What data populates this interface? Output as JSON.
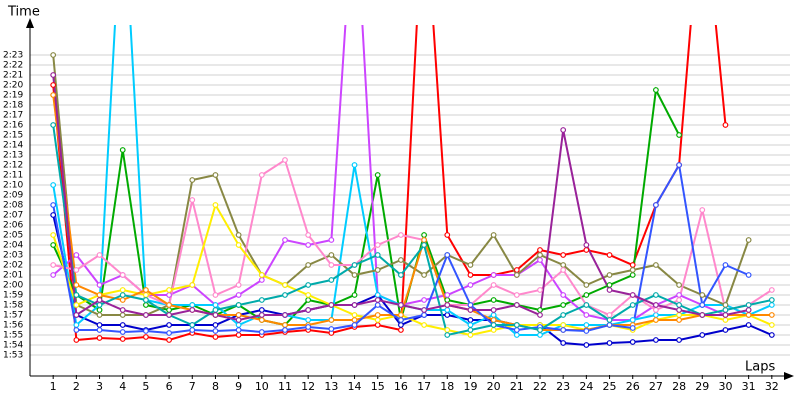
{
  "chart_data": {
    "type": "line",
    "y_label": "Time",
    "x_label": "Laps",
    "x": [
      1,
      2,
      3,
      4,
      5,
      6,
      7,
      8,
      9,
      10,
      11,
      12,
      13,
      14,
      15,
      16,
      17,
      18,
      19,
      20,
      21,
      22,
      23,
      24,
      25,
      26,
      27,
      28,
      29,
      30,
      31,
      32
    ],
    "xlim": [
      0,
      33
    ],
    "xticks": [
      1,
      2,
      3,
      4,
      5,
      6,
      7,
      8,
      9,
      10,
      11,
      12,
      13,
      14,
      15,
      16,
      17,
      18,
      19,
      20,
      21,
      22,
      23,
      24,
      25,
      26,
      27,
      28,
      29,
      30,
      31,
      32
    ],
    "ylim": [
      111,
      146
    ],
    "yticks": [
      {
        "value": 113,
        "label": "1:53"
      },
      {
        "value": 114,
        "label": "1:54"
      },
      {
        "value": 115,
        "label": "1:55"
      },
      {
        "value": 116,
        "label": "1:56"
      },
      {
        "value": 117,
        "label": "1:57"
      },
      {
        "value": 118,
        "label": "1:58"
      },
      {
        "value": 119,
        "label": "1:59"
      },
      {
        "value": 120,
        "label": "2:00"
      },
      {
        "value": 121,
        "label": "2:01"
      },
      {
        "value": 122,
        "label": "2:02"
      },
      {
        "value": 123,
        "label": "2:03"
      },
      {
        "value": 124,
        "label": "2:04"
      },
      {
        "value": 125,
        "label": "2:05"
      },
      {
        "value": 126,
        "label": "2:06"
      },
      {
        "value": 127,
        "label": "2:07"
      },
      {
        "value": 128,
        "label": "2:08"
      },
      {
        "value": 129,
        "label": "2:09"
      },
      {
        "value": 130,
        "label": "2:10"
      },
      {
        "value": 131,
        "label": "2:11"
      },
      {
        "value": 132,
        "label": "2:12"
      },
      {
        "value": 133,
        "label": "2:13"
      },
      {
        "value": 134,
        "label": "2:14"
      },
      {
        "value": 135,
        "label": "2:15"
      },
      {
        "value": 136,
        "label": "2:16"
      },
      {
        "value": 137,
        "label": "2:17"
      },
      {
        "value": 138,
        "label": "2:18"
      },
      {
        "value": 139,
        "label": "2:19"
      },
      {
        "value": 140,
        "label": "2:20"
      },
      {
        "value": 141,
        "label": "2:21"
      },
      {
        "value": 142,
        "label": "2:22"
      },
      {
        "value": 143,
        "label": "2:23"
      }
    ],
    "grid": true,
    "series": [
      {
        "color": "#ff0000",
        "values": [
          140,
          114.5,
          114.7,
          114.6,
          114.8,
          114.5,
          115.2,
          114.8,
          115,
          115,
          115.3,
          115.5,
          115.2,
          115.8,
          116,
          115.5,
          160,
          125,
          121,
          121,
          121.5,
          123.5,
          123,
          123.5,
          123,
          122,
          128,
          132,
          160,
          136,
          null,
          null
        ]
      },
      {
        "color": "#0000cc",
        "values": [
          127,
          117,
          116,
          116,
          115.5,
          116,
          116,
          116,
          117,
          117.5,
          117,
          117.5,
          118,
          118,
          119,
          116,
          117,
          117,
          116.5,
          116.5,
          116,
          116,
          114.2,
          114,
          114.2,
          114.3,
          114.5,
          114.5,
          115,
          115.5,
          116,
          115
        ]
      },
      {
        "color": "#00aa00",
        "values": [
          124,
          119,
          117.5,
          133.5,
          118,
          117.5,
          118,
          117,
          118,
          116.5,
          116,
          118.5,
          118,
          119,
          131,
          116.5,
          125,
          118.5,
          118,
          118.5,
          118,
          117.5,
          118,
          119,
          120,
          121,
          139.5,
          135,
          null,
          null,
          null,
          null
        ]
      },
      {
        "color": "#cc44ff",
        "values": [
          121,
          123,
          120,
          121,
          119,
          119,
          120,
          118,
          119,
          120.5,
          124.5,
          124,
          124.5,
          160,
          119,
          118,
          118.5,
          119,
          120,
          121,
          121,
          122.5,
          119,
          117,
          116.5,
          116.5,
          118,
          119,
          118,
          117,
          null,
          null
        ]
      },
      {
        "color": "#00ccff",
        "values": [
          130,
          116,
          118,
          160,
          118.5,
          118,
          118,
          118,
          116,
          117,
          117,
          116.5,
          116.5,
          132,
          119,
          118,
          117.5,
          117.5,
          116,
          117,
          115,
          115,
          116,
          116,
          116,
          116.5,
          117,
          117,
          118,
          118,
          117,
          118
        ]
      },
      {
        "color": "#888844",
        "values": [
          143,
          118,
          117,
          117,
          117,
          118,
          130.5,
          131,
          125,
          121,
          120,
          122,
          123,
          121,
          121.5,
          122.5,
          121,
          123,
          122,
          125,
          121,
          123,
          122,
          120,
          121,
          121.5,
          122,
          120,
          119,
          118,
          124.5,
          null
        ]
      },
      {
        "color": "#ff88cc",
        "values": [
          122,
          121.5,
          123,
          121,
          119,
          118,
          128.5,
          119,
          120,
          131,
          132.5,
          125,
          122,
          122,
          124,
          125,
          124.5,
          118,
          118,
          120,
          119,
          119.5,
          121.5,
          118,
          117,
          119,
          117.5,
          118.5,
          127.5,
          117.5,
          118,
          119.5
        ]
      },
      {
        "color": "#ffee00",
        "values": [
          125,
          118,
          119,
          119.5,
          119,
          119.5,
          120,
          128,
          124,
          121,
          120,
          119,
          118,
          117,
          116.5,
          117,
          116,
          115.5,
          115,
          115.5,
          116,
          116,
          116,
          115.5,
          116,
          115.5,
          116.5,
          117,
          117,
          116.5,
          117,
          116
        ]
      },
      {
        "color": "#ff8800",
        "values": [
          139,
          120,
          119,
          118.5,
          119.5,
          118,
          117.5,
          117,
          117,
          116.5,
          116,
          116,
          116.5,
          116.5,
          117,
          117,
          124.5,
          118,
          117.5,
          116.5,
          116,
          115.5,
          115.5,
          115.5,
          116,
          116,
          116.5,
          116.5,
          117,
          117,
          117,
          117
        ]
      },
      {
        "color": "#3355ff",
        "values": [
          128,
          115.5,
          115.5,
          115.3,
          115.4,
          115.2,
          115.5,
          115.4,
          115.5,
          115.3,
          115.5,
          115.8,
          115.6,
          116,
          118,
          116.5,
          117,
          123,
          118,
          116,
          115.5,
          115.8,
          115.5,
          115.4,
          116,
          115.7,
          128,
          132,
          118,
          122,
          121,
          null
        ]
      },
      {
        "color": "#00aaaa",
        "values": [
          136,
          119,
          118,
          119,
          118.5,
          117,
          116,
          117.5,
          118,
          118.5,
          119,
          120,
          120.5,
          122,
          123,
          121,
          124,
          115,
          115.5,
          116,
          116,
          115.5,
          117,
          118,
          116.5,
          118,
          119,
          118,
          117,
          117.5,
          118,
          118.5
        ]
      },
      {
        "color": "#992299",
        "values": [
          141,
          117,
          118.5,
          117.5,
          117,
          117,
          117.5,
          117,
          116.5,
          117,
          117,
          117.5,
          118,
          118,
          118.5,
          118,
          117.5,
          118,
          117.5,
          117.5,
          118,
          117,
          135.5,
          124,
          119.5,
          119,
          118,
          117.5,
          117,
          117,
          117.5,
          null
        ]
      }
    ]
  }
}
